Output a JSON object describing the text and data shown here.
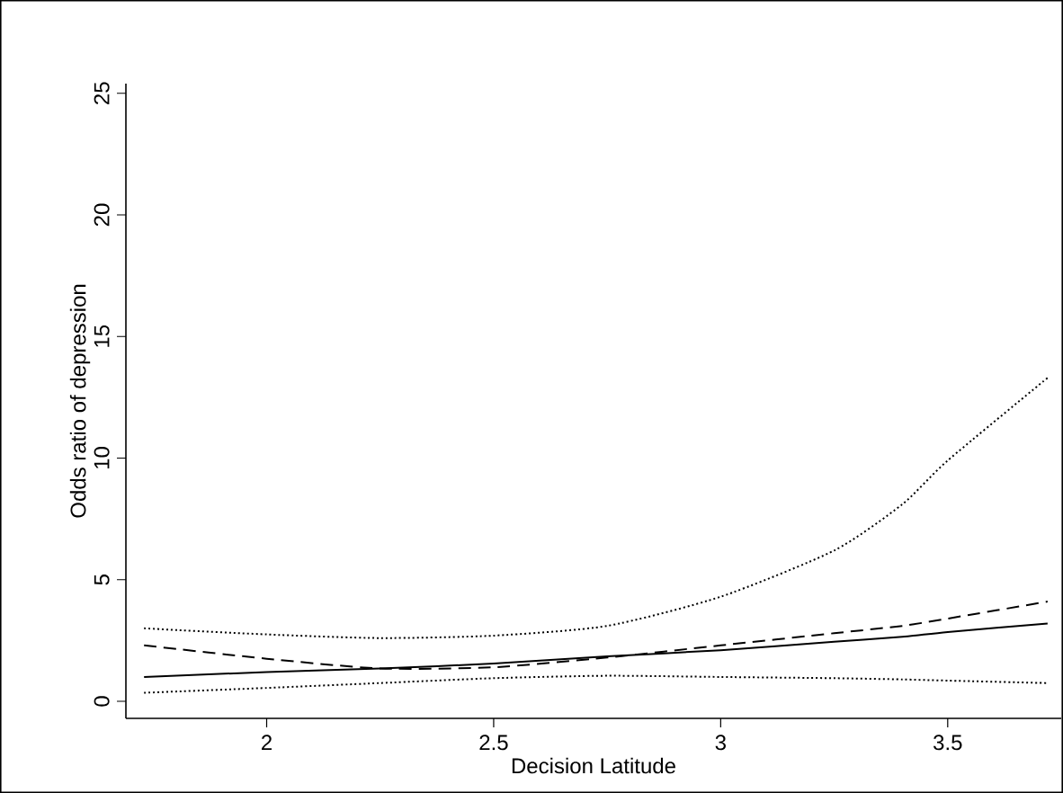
{
  "chart_data": {
    "type": "line",
    "xlabel": "Decision Latitude",
    "ylabel": "Odds ratio of depression",
    "xlim": [
      1.69,
      3.75
    ],
    "ylim": [
      -0.7,
      25.4
    ],
    "xticks": [
      2,
      2.5,
      3,
      3.5
    ],
    "yticks": [
      0,
      5,
      10,
      15,
      20,
      25
    ],
    "x": [
      1.73,
      2.0,
      2.25,
      2.5,
      2.75,
      3.0,
      3.25,
      3.4,
      3.5,
      3.72
    ],
    "series": [
      {
        "color": "#000000",
        "line_style": "dotted",
        "values": [
          3.0,
          2.75,
          2.6,
          2.7,
          3.1,
          4.3,
          6.2,
          8.1,
          9.9,
          13.3
        ]
      },
      {
        "color": "#000000",
        "line_style": "dashed",
        "values": [
          2.3,
          1.75,
          1.35,
          1.4,
          1.8,
          2.3,
          2.8,
          3.1,
          3.4,
          4.1
        ]
      },
      {
        "color": "#000000",
        "line_style": "solid",
        "values": [
          1.0,
          1.2,
          1.35,
          1.55,
          1.85,
          2.1,
          2.45,
          2.65,
          2.85,
          3.2
        ]
      },
      {
        "color": "#000000",
        "line_style": "dotted",
        "values": [
          0.35,
          0.55,
          0.75,
          0.95,
          1.05,
          1.0,
          0.95,
          0.9,
          0.85,
          0.75
        ]
      }
    ]
  }
}
